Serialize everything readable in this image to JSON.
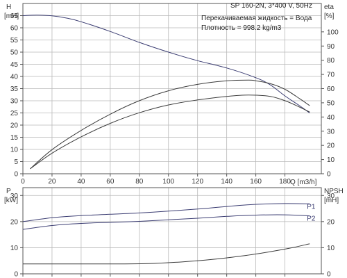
{
  "chart_data": [
    {
      "type": "line",
      "title": "SP 160-2N, 3*400 V, 50Hz",
      "info_lines": [
        "Перекачиваемая жидкость = Вода",
        "Плотность = 998.2 kg/m3"
      ],
      "xlabel": "Q [m3/h]",
      "xlim": [
        0,
        205
      ],
      "xticks": [
        0,
        20,
        40,
        60,
        80,
        100,
        120,
        140,
        160,
        180
      ],
      "grid": true,
      "left_axis": {
        "name": "H",
        "unit": "[mH]",
        "ylim": [
          0,
          70
        ],
        "ticks": [
          0,
          5,
          10,
          15,
          20,
          25,
          30,
          35,
          40,
          45,
          50,
          55,
          60,
          65
        ]
      },
      "right_axis": {
        "name": "eta",
        "unit": "[%]",
        "ylim": [
          0,
          120
        ],
        "ticks": [
          0,
          10,
          20,
          30,
          40,
          50,
          60,
          70,
          80,
          90,
          100
        ]
      },
      "series": [
        {
          "axis": "left",
          "color": "#3b3d72",
          "points": [
            [
              0,
              65.0
            ],
            [
              10,
              65.2
            ],
            [
              20,
              64.9
            ],
            [
              30,
              64.0
            ],
            [
              40,
              62.5
            ],
            [
              60,
              58.5
            ],
            [
              80,
              54.0
            ],
            [
              100,
              50.0
            ],
            [
              120,
              46.5
            ],
            [
              140,
              43.5
            ],
            [
              160,
              39.5
            ],
            [
              170,
              36.5
            ],
            [
              180,
              32.0
            ],
            [
              190,
              28.0
            ],
            [
              197,
              25.0
            ]
          ]
        },
        {
          "axis": "right",
          "color": "#3a3a3a",
          "points": [
            [
              5,
              3.5
            ],
            [
              20,
              17.0
            ],
            [
              40,
              30.5
            ],
            [
              60,
              42.0
            ],
            [
              80,
              51.5
            ],
            [
              100,
              58.5
            ],
            [
              120,
              63.0
            ],
            [
              140,
              65.5
            ],
            [
              155,
              66.0
            ],
            [
              160,
              65.5
            ],
            [
              170,
              63.5
            ],
            [
              180,
              59.5
            ],
            [
              190,
              53.0
            ],
            [
              197,
              48.0
            ]
          ]
        },
        {
          "axis": "right",
          "color": "#3a3a3a",
          "points": [
            [
              5,
              3.5
            ],
            [
              20,
              14.5
            ],
            [
              40,
              26.0
            ],
            [
              60,
              35.5
            ],
            [
              80,
              43.0
            ],
            [
              100,
              48.5
            ],
            [
              120,
              52.0
            ],
            [
              140,
              54.5
            ],
            [
              155,
              55.5
            ],
            [
              170,
              54.5
            ],
            [
              180,
              51.5
            ],
            [
              190,
              47.0
            ],
            [
              197,
              43.5
            ]
          ]
        }
      ]
    },
    {
      "type": "line",
      "xlim": [
        0,
        205
      ],
      "xticks": [
        0,
        20,
        40,
        60,
        80,
        100,
        120,
        140,
        160,
        180
      ],
      "grid": true,
      "left_axis": {
        "name": "P",
        "unit": "[kW]",
        "ylim": [
          0,
          33
        ],
        "ticks": [
          0,
          10,
          20,
          30
        ]
      },
      "right_axis": {
        "name": "NPSH",
        "unit": "[mH]",
        "ylim": [
          0,
          33
        ],
        "ticks": [
          0,
          10,
          20,
          30
        ]
      },
      "series": [
        {
          "name": "P1",
          "axis": "left",
          "color": "#3b3d72",
          "points": [
            [
              0,
              20.0
            ],
            [
              20,
              21.5
            ],
            [
              40,
              22.3
            ],
            [
              60,
              22.8
            ],
            [
              80,
              23.3
            ],
            [
              100,
              24.0
            ],
            [
              120,
              24.8
            ],
            [
              140,
              25.8
            ],
            [
              160,
              26.6
            ],
            [
              180,
              26.9
            ],
            [
              197,
              26.8
            ]
          ]
        },
        {
          "name": "P2",
          "axis": "left",
          "color": "#3b3d72",
          "points": [
            [
              0,
              17.0
            ],
            [
              20,
              18.5
            ],
            [
              40,
              19.3
            ],
            [
              60,
              19.7
            ],
            [
              80,
              20.1
            ],
            [
              100,
              20.7
            ],
            [
              120,
              21.3
            ],
            [
              140,
              22.0
            ],
            [
              160,
              22.5
            ],
            [
              180,
              22.6
            ],
            [
              197,
              22.2
            ]
          ]
        },
        {
          "axis": "right",
          "color": "#3a3a3a",
          "points": [
            [
              0,
              3.8
            ],
            [
              40,
              3.8
            ],
            [
              70,
              3.8
            ],
            [
              90,
              4.0
            ],
            [
              110,
              4.6
            ],
            [
              130,
              5.5
            ],
            [
              150,
              6.8
            ],
            [
              170,
              8.5
            ],
            [
              185,
              10.0
            ],
            [
              197,
              11.5
            ]
          ]
        }
      ]
    }
  ]
}
